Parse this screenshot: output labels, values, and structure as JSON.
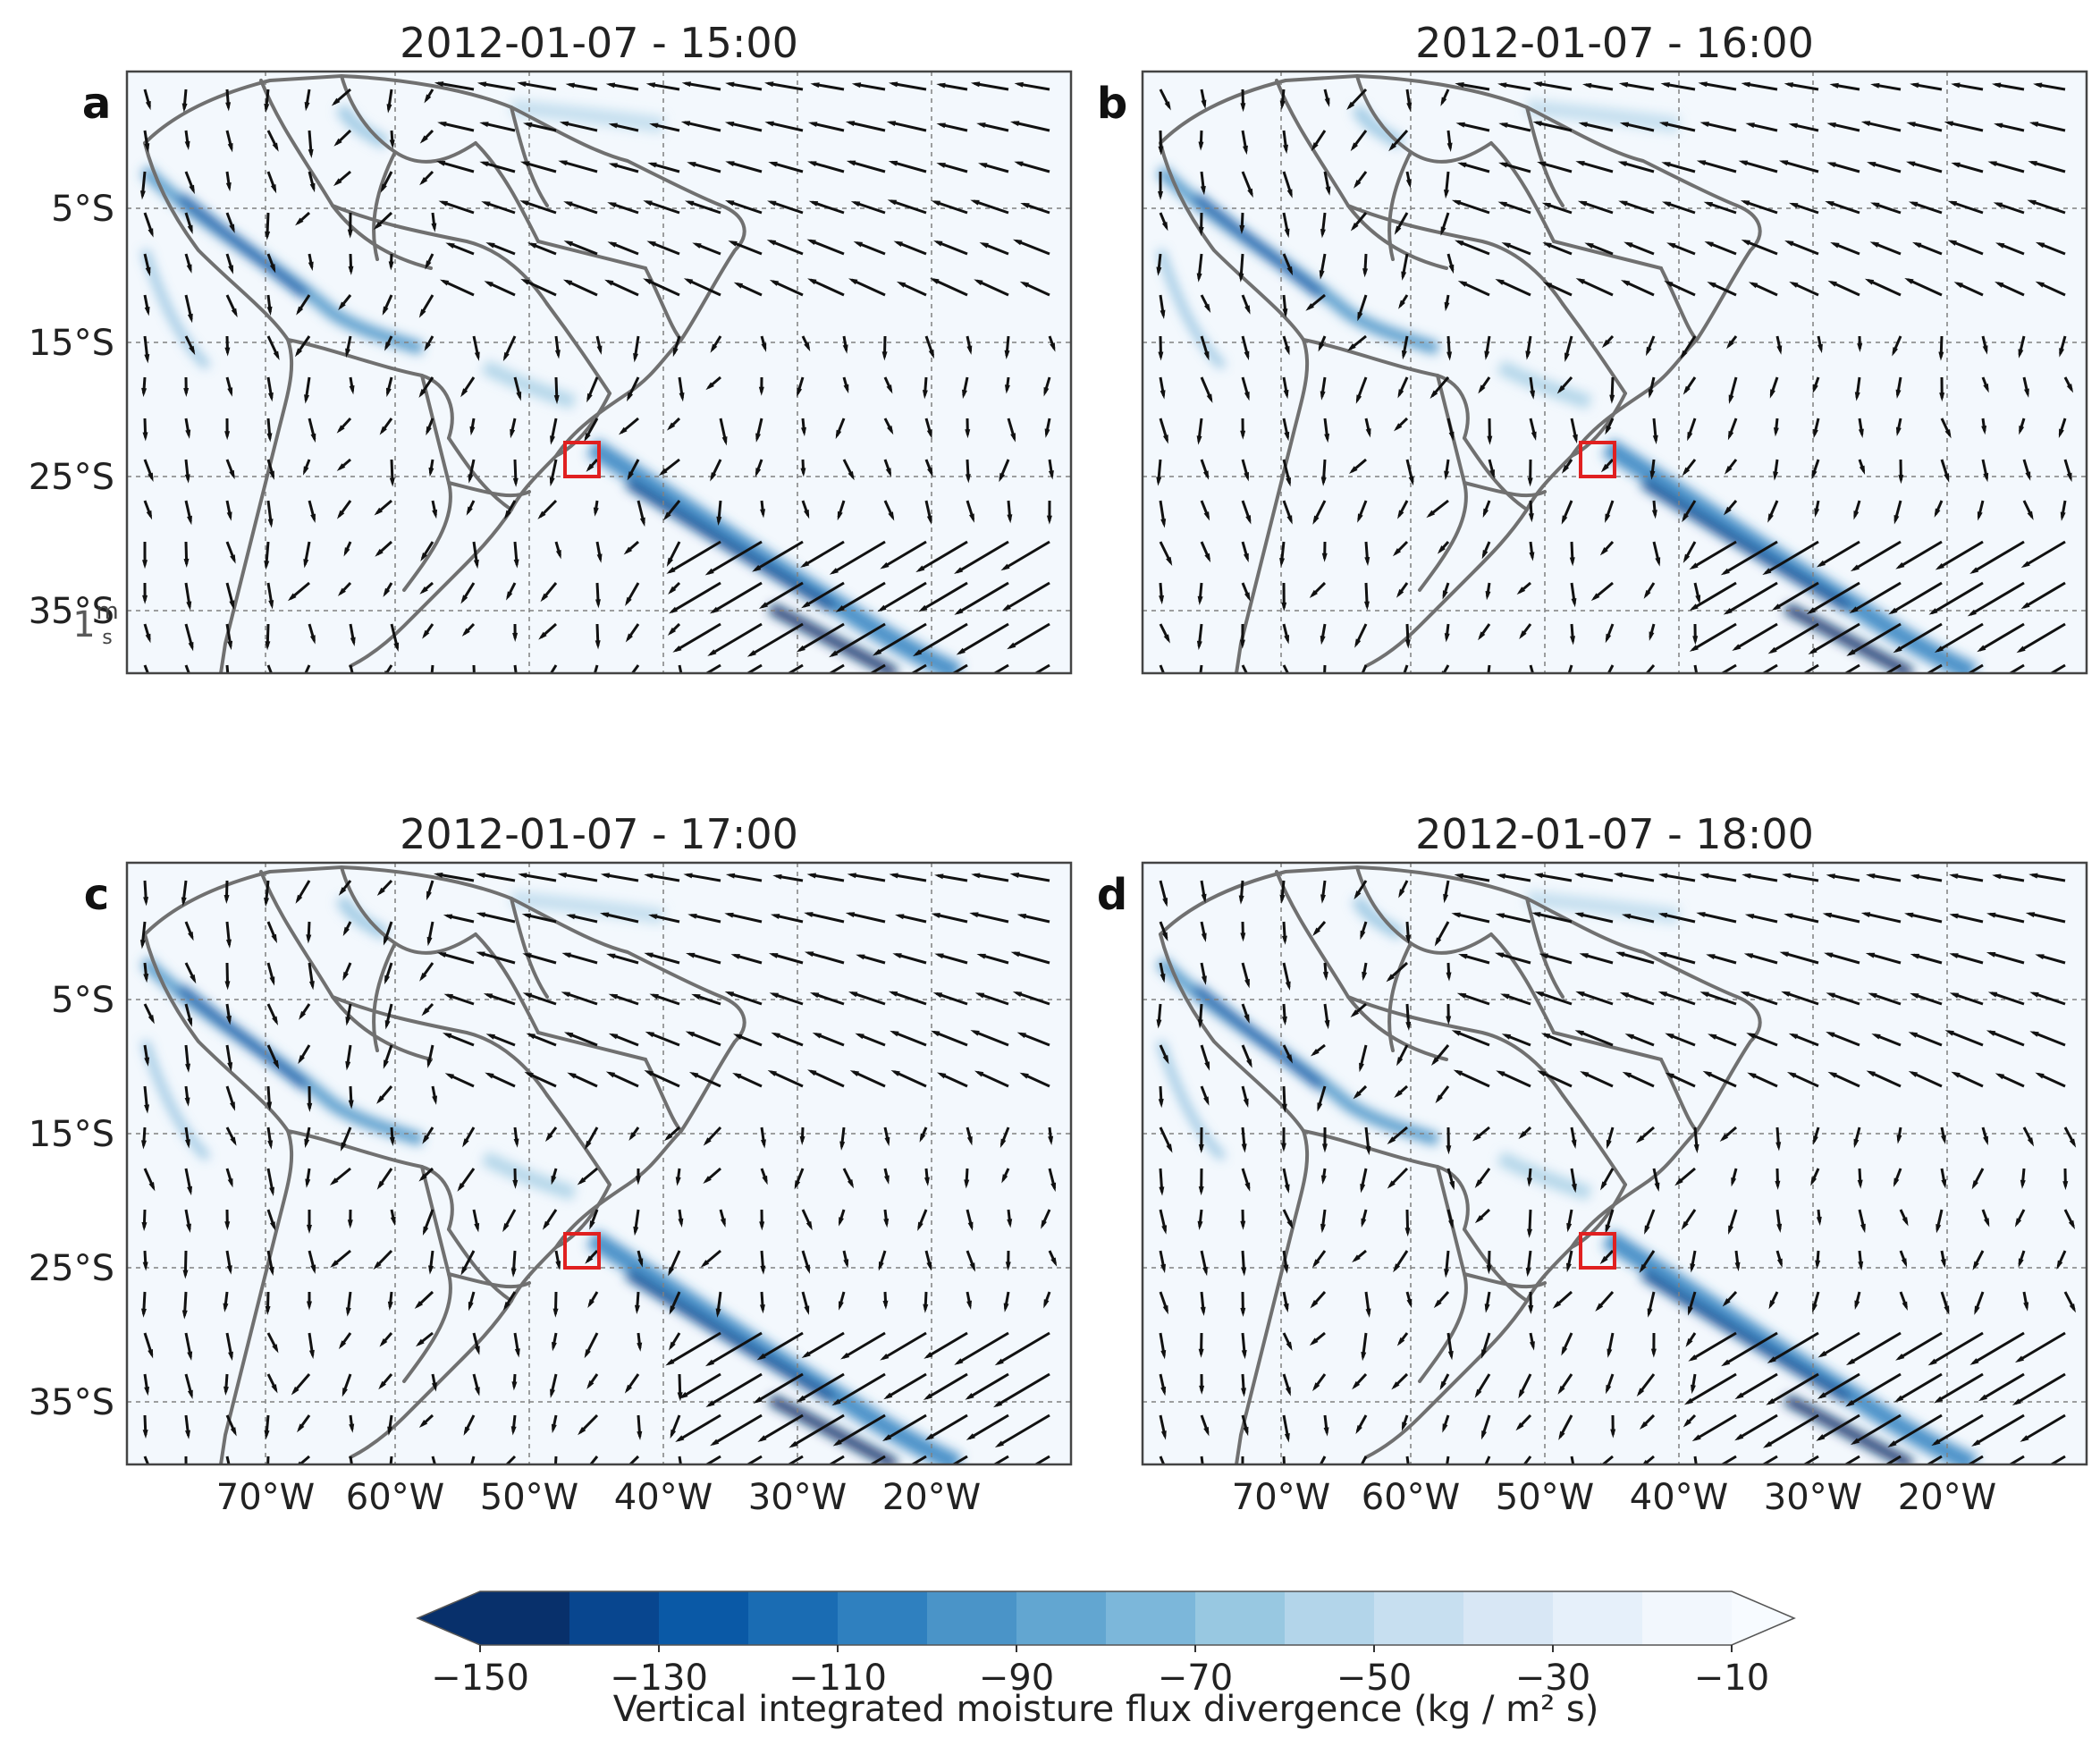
{
  "panels": [
    {
      "label": "a",
      "title": "2012-01-07 - 15:00"
    },
    {
      "label": "b",
      "title": "2012-01-07 - 16:00"
    },
    {
      "label": "c",
      "title": "2012-01-07 - 17:00"
    },
    {
      "label": "d",
      "title": "2012-01-07 - 18:00"
    }
  ],
  "lat_ticks": [
    "5°S",
    "15°S",
    "25°S",
    "35°S"
  ],
  "lon_ticks": [
    "70°W",
    "60°W",
    "50°W",
    "40°W",
    "30°W",
    "20°W"
  ],
  "quiver_key": "1",
  "quiver_key_unit_num": "m",
  "quiver_key_unit_den": "s",
  "colorbar": {
    "label": "Vertical integrated moisture flux divergence (kg / m² s)",
    "tick_labels": [
      "−150",
      "−130",
      "−110",
      "−90",
      "−70",
      "−50",
      "−30",
      "−10"
    ],
    "colors": [
      "#08306b",
      "#08468f",
      "#0a59a6",
      "#1a6cb3",
      "#2f80bf",
      "#4a94c8",
      "#62a6d1",
      "#7cb7da",
      "#98c8e1",
      "#b3d5ea",
      "#c7dff0",
      "#d8e7f5",
      "#e6f0fa",
      "#f2f7fd"
    ],
    "under_color": "#08306b",
    "over_color": "#f7fbff"
  },
  "colors": {
    "map_background": "#f3f8fd",
    "border_line": "#707070",
    "arrow": "#111111",
    "highlight_box": "#e02020",
    "gridline": "#808080"
  }
}
